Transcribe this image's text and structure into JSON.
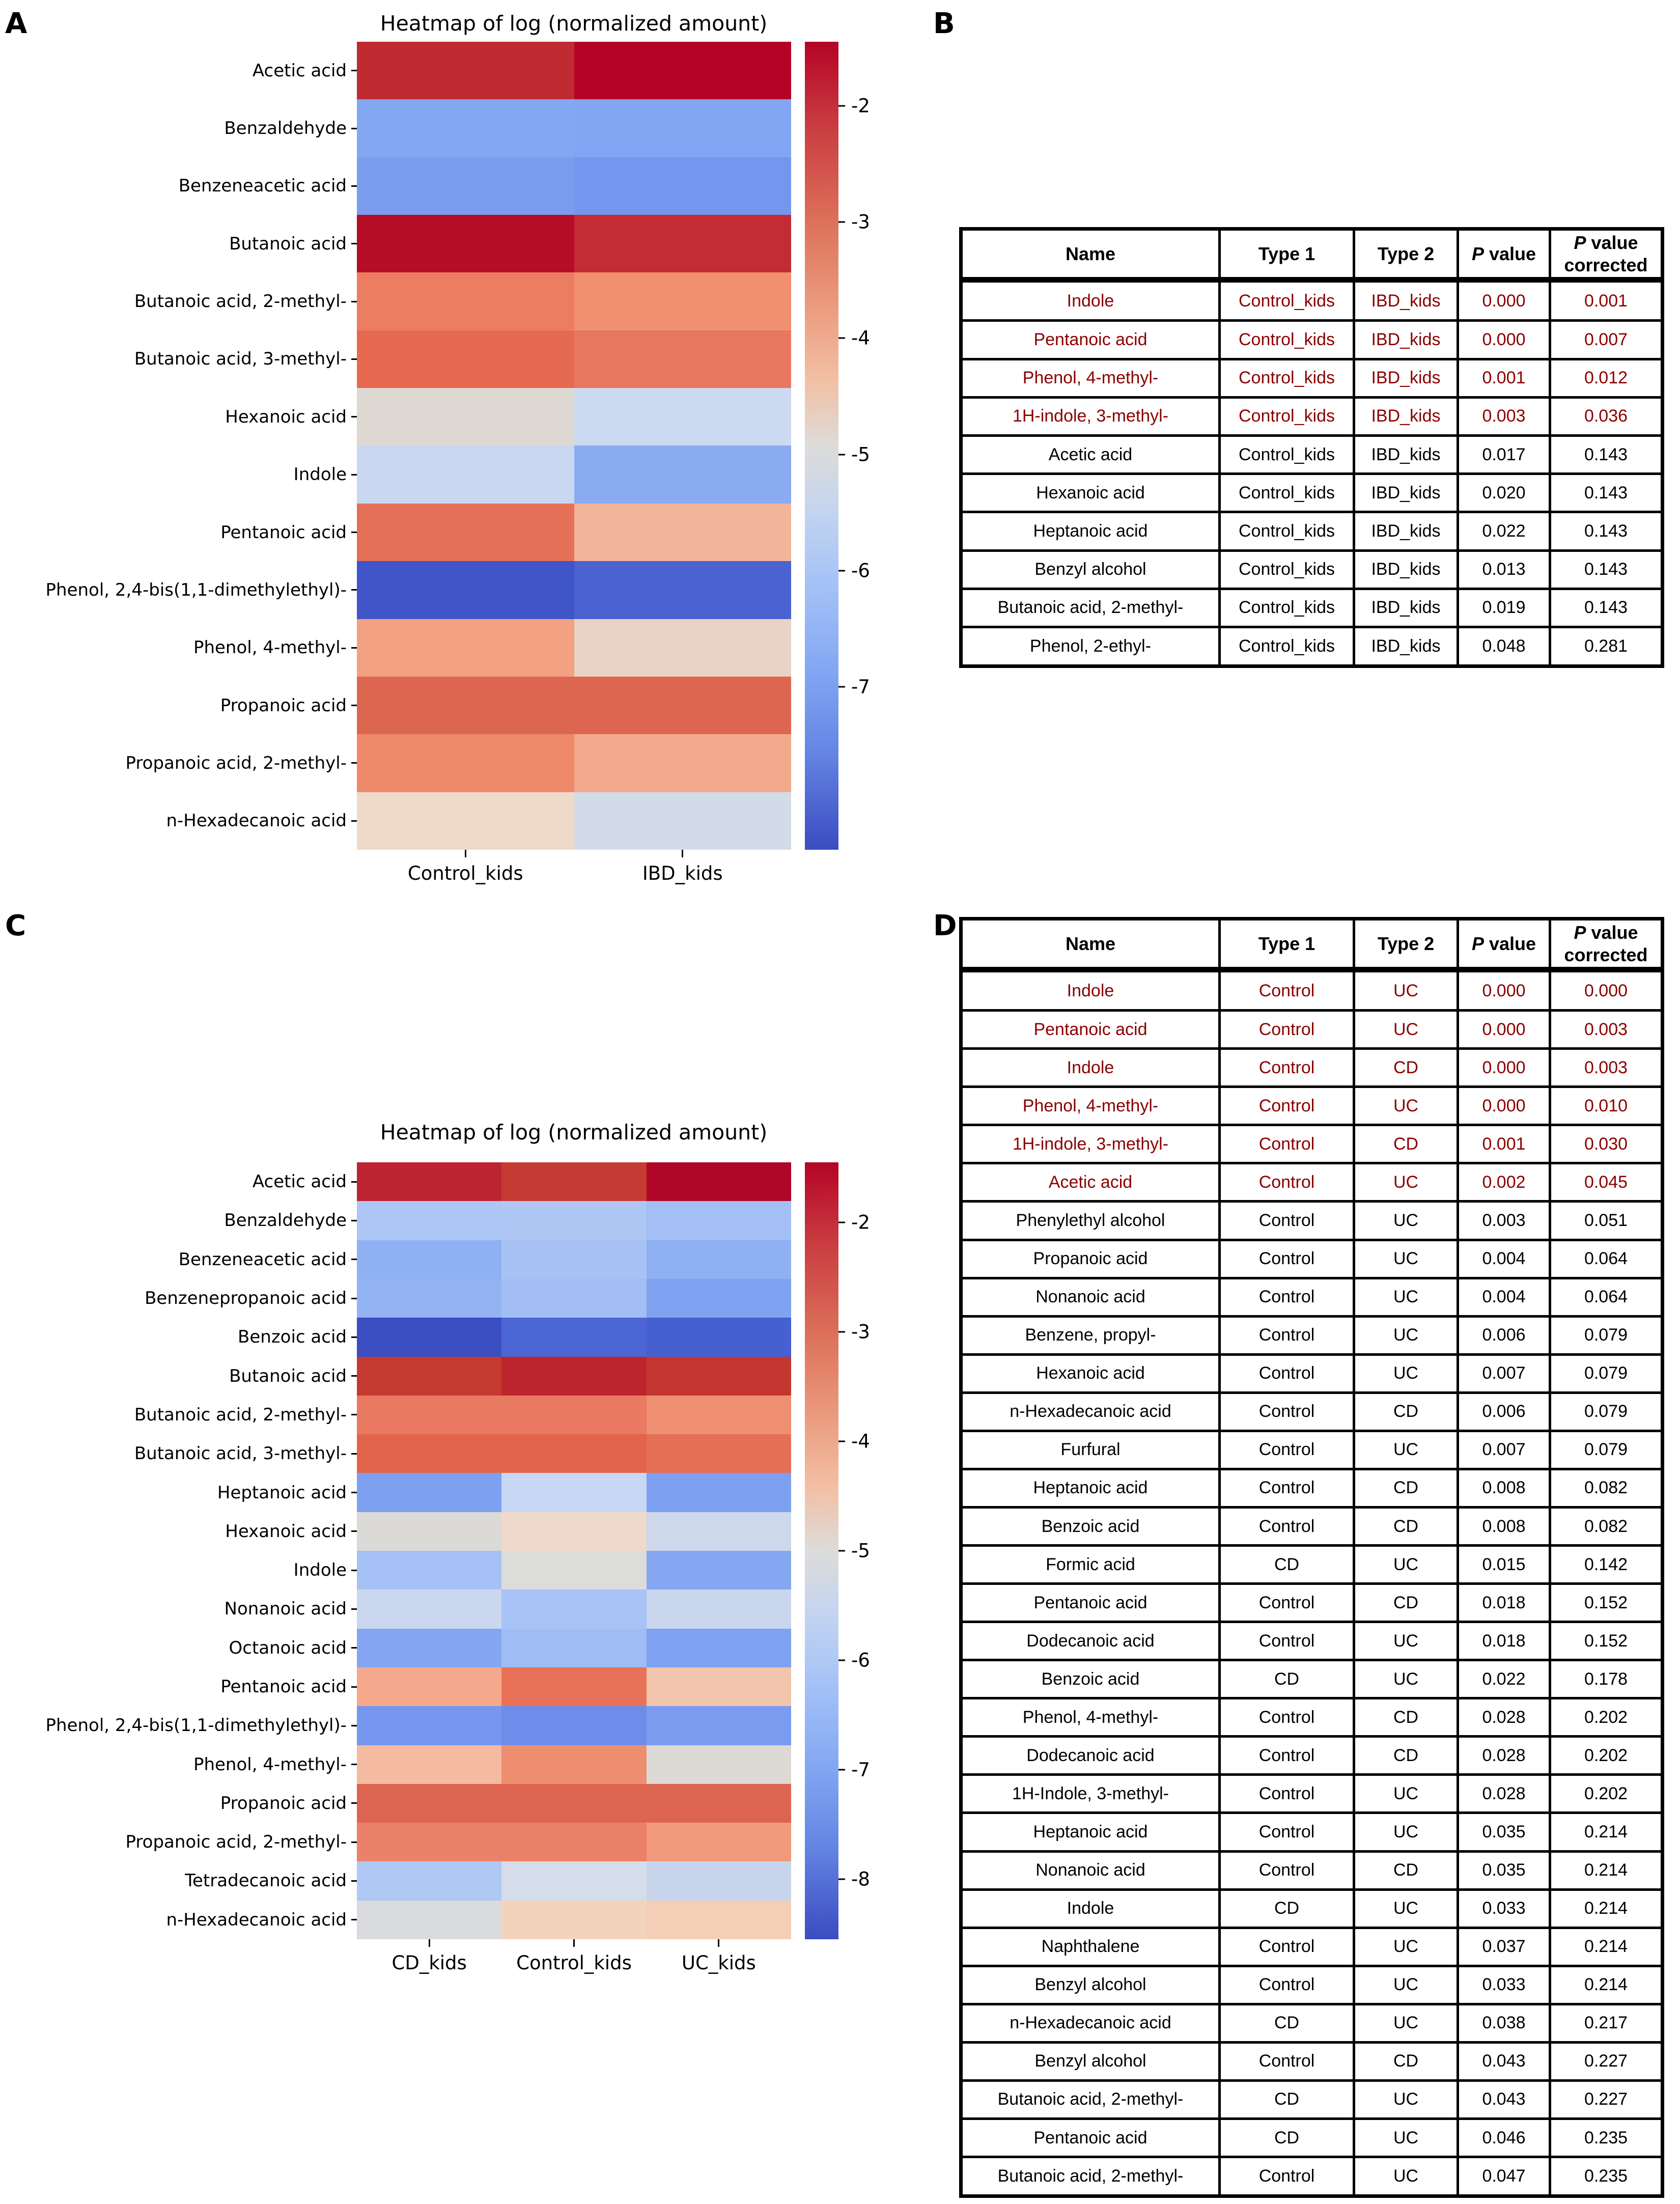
{
  "figure": {
    "background": "#ffffff",
    "significant_text_color": "#8b0000",
    "table_border_color": "#000000"
  },
  "panels": {
    "a": {
      "letter": "A"
    },
    "b": {
      "letter": "B"
    },
    "c": {
      "letter": "C"
    },
    "d": {
      "letter": "D"
    }
  },
  "chart_data": {
    "heatmap_a": {
      "type": "heatmap",
      "title": "Heatmap of log (normalized amount)",
      "rows": [
        "Acetic acid",
        "Benzaldehyde",
        "Benzeneacetic acid",
        "Butanoic acid",
        "Butanoic acid, 2-methyl-",
        "Butanoic acid, 3-methyl-",
        "Hexanoic acid",
        "Indole",
        "Pentanoic acid",
        "Phenol, 2,4-bis(1,1-dimethylethyl)-",
        "Phenol, 4-methyl-",
        "Propanoic acid",
        "Propanoic acid, 2-methyl-",
        "n-Hexadecanoic acid"
      ],
      "columns": [
        "Control_kids",
        "IBD_kids"
      ],
      "values_log_estimated": [
        [
          -2.05,
          -1.55
        ],
        [
          -6.45,
          -6.5
        ],
        [
          -6.7,
          -6.85
        ],
        [
          -1.65,
          -2.05
        ],
        [
          -3.5,
          -3.75
        ],
        [
          -3.3,
          -3.45
        ],
        [
          -4.85,
          -5.6
        ],
        [
          -5.65,
          -6.35
        ],
        [
          -3.35,
          -4.15
        ],
        [
          -8.1,
          -7.9
        ],
        [
          -3.95,
          -4.65
        ],
        [
          -3.2,
          -3.2
        ],
        [
          -3.6,
          -4.0
        ],
        [
          -4.55,
          -5.3
        ]
      ],
      "colors": [
        [
          "#bf2a33",
          "#b40426"
        ],
        [
          "#84a7f1",
          "#82a5f1"
        ],
        [
          "#7b9df0",
          "#7496ee"
        ],
        [
          "#b50c28",
          "#c32b35"
        ],
        [
          "#ec7d60",
          "#f0906f"
        ],
        [
          "#e56a50",
          "#e87760"
        ],
        [
          "#ddd9d2",
          "#cdd9f0"
        ],
        [
          "#c9d8f0",
          "#8aabf2"
        ],
        [
          "#e57058",
          "#f2b49a"
        ],
        [
          "#4055c8",
          "#4a63d0"
        ],
        [
          "#f2a183",
          "#e8d3c6"
        ],
        [
          "#dd6650",
          "#dd6650"
        ],
        [
          "#ee8a69",
          "#f2a98c"
        ],
        [
          "#efd9c8",
          "#d2dce9"
        ]
      ],
      "colorbar": {
        "vmax": -1.45,
        "vmin": -8.4,
        "ticks": [
          -2,
          -3,
          -4,
          -5,
          -6,
          -7
        ]
      }
    },
    "heatmap_c": {
      "type": "heatmap",
      "title": "Heatmap of log (normalized amount)",
      "rows": [
        "Acetic acid",
        "Benzaldehyde",
        "Benzeneacetic acid",
        "Benzenepropanoic acid",
        "Benzoic acid",
        "Butanoic acid",
        "Butanoic acid, 2-methyl-",
        "Butanoic acid, 3-methyl-",
        "Heptanoic acid",
        "Hexanoic acid",
        "Indole",
        "Nonanoic acid",
        "Octanoic acid",
        "Pentanoic acid",
        "Phenol, 2,4-bis(1,1-dimethylethyl)-",
        "Phenol, 4-methyl-",
        "Propanoic acid",
        "Propanoic acid, 2-methyl-",
        "Tetradecanoic acid",
        "n-Hexadecanoic acid"
      ],
      "columns": [
        "CD_kids",
        "Control_kids",
        "UC_kids"
      ],
      "values_log_estimated": [
        [
          -2.1,
          -2.2,
          -1.7
        ],
        [
          -6.05,
          -6.05,
          -6.2
        ],
        [
          -6.5,
          -6.15,
          -6.5
        ],
        [
          -6.45,
          -6.25,
          -6.7
        ],
        [
          -8.35,
          -7.9,
          -8.05
        ],
        [
          -2.25,
          -2.0,
          -2.2
        ],
        [
          -3.5,
          -3.5,
          -3.75
        ],
        [
          -3.3,
          -3.3,
          -3.4
        ],
        [
          -6.75,
          -5.5,
          -6.75
        ],
        [
          -4.9,
          -4.55,
          -5.5
        ],
        [
          -6.25,
          -5.0,
          -6.6
        ],
        [
          -5.5,
          -6.2,
          -5.55
        ],
        [
          -6.55,
          -6.3,
          -6.7
        ],
        [
          -3.9,
          -3.4,
          -4.3
        ],
        [
          -6.95,
          -7.1,
          -6.9
        ],
        [
          -4.2,
          -3.7,
          -4.9
        ],
        [
          -3.2,
          -3.2,
          -3.2
        ],
        [
          -3.6,
          -3.6,
          -3.9
        ],
        [
          -6.0,
          -5.25,
          -5.6
        ],
        [
          -5.0,
          -4.4,
          -4.45
        ]
      ],
      "colors": [
        [
          "#be2330",
          "#c53a33",
          "#ae0727"
        ],
        [
          "#aec6f5",
          "#afc7f5",
          "#a3bff5"
        ],
        [
          "#8fb0f3",
          "#a8c2f5",
          "#8fb0f3"
        ],
        [
          "#93b3f3",
          "#a3bef4",
          "#7fa2f1"
        ],
        [
          "#3b4ec2",
          "#4c66d6",
          "#4760d1"
        ],
        [
          "#c53a30",
          "#be242e",
          "#c43630"
        ],
        [
          "#e97961",
          "#e97961",
          "#ee8f72"
        ],
        [
          "#e2654b",
          "#e2654b",
          "#e56f55"
        ],
        [
          "#7da0f1",
          "#c8d7f3",
          "#7da0f1"
        ],
        [
          "#dbdad6",
          "#efd9ca",
          "#cdd8ea"
        ],
        [
          "#a5c1f5",
          "#dcdcda",
          "#85a7f2"
        ],
        [
          "#cbd7ee",
          "#a8c3f5",
          "#c9d6ee"
        ],
        [
          "#84a6f2",
          "#9fbcf4",
          "#7fa2f1"
        ],
        [
          "#f5a88b",
          "#e87258",
          "#f2c5ac"
        ],
        [
          "#7696ef",
          "#6e8dea",
          "#7a9bf0"
        ],
        [
          "#f4bba0",
          "#ee8e70",
          "#dddad6"
        ],
        [
          "#dc6450",
          "#dc6450",
          "#dc6450"
        ],
        [
          "#eb8168",
          "#eb8168",
          "#f09a7b"
        ],
        [
          "#afc8f4",
          "#d4dde9",
          "#c7d4ec"
        ],
        [
          "#d9dbde",
          "#f4d3bd",
          "#f4cfb6"
        ]
      ],
      "colorbar": {
        "vmax": -1.45,
        "vmin": -8.55,
        "ticks": [
          -2,
          -3,
          -4,
          -5,
          -6,
          -7,
          -8
        ]
      }
    },
    "table_b": {
      "type": "table",
      "headers": [
        "Name",
        "Type 1",
        "Type 2",
        "P value",
        "P value\ncorrected"
      ],
      "rows": [
        {
          "name": "Indole",
          "type1": "Control_kids",
          "type2": "IBD_kids",
          "p": "0.000",
          "p_corrected": "0.001",
          "sig": true
        },
        {
          "name": "Pentanoic acid",
          "type1": "Control_kids",
          "type2": "IBD_kids",
          "p": "0.000",
          "p_corrected": "0.007",
          "sig": true
        },
        {
          "name": "Phenol, 4-methyl-",
          "type1": "Control_kids",
          "type2": "IBD_kids",
          "p": "0.001",
          "p_corrected": "0.012",
          "sig": true
        },
        {
          "name": "1H-indole, 3-methyl-",
          "type1": "Control_kids",
          "type2": "IBD_kids",
          "p": "0.003",
          "p_corrected": "0.036",
          "sig": true
        },
        {
          "name": "Acetic acid",
          "type1": "Control_kids",
          "type2": "IBD_kids",
          "p": "0.017",
          "p_corrected": "0.143",
          "sig": false
        },
        {
          "name": "Hexanoic acid",
          "type1": "Control_kids",
          "type2": "IBD_kids",
          "p": "0.020",
          "p_corrected": "0.143",
          "sig": false
        },
        {
          "name": "Heptanoic acid",
          "type1": "Control_kids",
          "type2": "IBD_kids",
          "p": "0.022",
          "p_corrected": "0.143",
          "sig": false
        },
        {
          "name": "Benzyl alcohol",
          "type1": "Control_kids",
          "type2": "IBD_kids",
          "p": "0.013",
          "p_corrected": "0.143",
          "sig": false
        },
        {
          "name": "Butanoic acid, 2-methyl-",
          "type1": "Control_kids",
          "type2": "IBD_kids",
          "p": "0.019",
          "p_corrected": "0.143",
          "sig": false
        },
        {
          "name": "Phenol, 2-ethyl-",
          "type1": "Control_kids",
          "type2": "IBD_kids",
          "p": "0.048",
          "p_corrected": "0.281",
          "sig": false
        }
      ]
    },
    "table_d": {
      "type": "table",
      "headers": [
        "Name",
        "Type 1",
        "Type 2",
        "P value",
        "P value\ncorrected"
      ],
      "rows": [
        {
          "name": "Indole",
          "type1": "Control",
          "type2": "UC",
          "p": "0.000",
          "p_corrected": "0.000",
          "sig": true
        },
        {
          "name": "Pentanoic acid",
          "type1": "Control",
          "type2": "UC",
          "p": "0.000",
          "p_corrected": "0.003",
          "sig": true
        },
        {
          "name": "Indole",
          "type1": "Control",
          "type2": "CD",
          "p": "0.000",
          "p_corrected": "0.003",
          "sig": true
        },
        {
          "name": "Phenol, 4-methyl-",
          "type1": "Control",
          "type2": "UC",
          "p": "0.000",
          "p_corrected": "0.010",
          "sig": true
        },
        {
          "name": "1H-indole, 3-methyl-",
          "type1": "Control",
          "type2": "CD",
          "p": "0.001",
          "p_corrected": "0.030",
          "sig": true
        },
        {
          "name": "Acetic acid",
          "type1": "Control",
          "type2": "UC",
          "p": "0.002",
          "p_corrected": "0.045",
          "sig": true
        },
        {
          "name": "Phenylethyl alcohol",
          "type1": "Control",
          "type2": "UC",
          "p": "0.003",
          "p_corrected": "0.051",
          "sig": false
        },
        {
          "name": "Propanoic acid",
          "type1": "Control",
          "type2": "UC",
          "p": "0.004",
          "p_corrected": "0.064",
          "sig": false
        },
        {
          "name": "Nonanoic acid",
          "type1": "Control",
          "type2": "UC",
          "p": "0.004",
          "p_corrected": "0.064",
          "sig": false
        },
        {
          "name": "Benzene, propyl-",
          "type1": "Control",
          "type2": "UC",
          "p": "0.006",
          "p_corrected": "0.079",
          "sig": false
        },
        {
          "name": "Hexanoic acid",
          "type1": "Control",
          "type2": "UC",
          "p": "0.007",
          "p_corrected": "0.079",
          "sig": false
        },
        {
          "name": "n-Hexadecanoic acid",
          "type1": "Control",
          "type2": "CD",
          "p": "0.006",
          "p_corrected": "0.079",
          "sig": false
        },
        {
          "name": "Furfural",
          "type1": "Control",
          "type2": "UC",
          "p": "0.007",
          "p_corrected": "0.079",
          "sig": false
        },
        {
          "name": "Heptanoic acid",
          "type1": "Control",
          "type2": "CD",
          "p": "0.008",
          "p_corrected": "0.082",
          "sig": false
        },
        {
          "name": "Benzoic acid",
          "type1": "Control",
          "type2": "CD",
          "p": "0.008",
          "p_corrected": "0.082",
          "sig": false
        },
        {
          "name": "Formic acid",
          "type1": "CD",
          "type2": "UC",
          "p": "0.015",
          "p_corrected": "0.142",
          "sig": false
        },
        {
          "name": "Pentanoic acid",
          "type1": "Control",
          "type2": "CD",
          "p": "0.018",
          "p_corrected": "0.152",
          "sig": false
        },
        {
          "name": "Dodecanoic acid",
          "type1": "Control",
          "type2": "UC",
          "p": "0.018",
          "p_corrected": "0.152",
          "sig": false
        },
        {
          "name": "Benzoic acid",
          "type1": "CD",
          "type2": "UC",
          "p": "0.022",
          "p_corrected": "0.178",
          "sig": false
        },
        {
          "name": "Phenol, 4-methyl-",
          "type1": "Control",
          "type2": "CD",
          "p": "0.028",
          "p_corrected": "0.202",
          "sig": false
        },
        {
          "name": "Dodecanoic acid",
          "type1": "Control",
          "type2": "CD",
          "p": "0.028",
          "p_corrected": "0.202",
          "sig": false
        },
        {
          "name": "1H-Indole, 3-methyl-",
          "type1": "Control",
          "type2": "UC",
          "p": "0.028",
          "p_corrected": "0.202",
          "sig": false
        },
        {
          "name": "Heptanoic acid",
          "type1": "Control",
          "type2": "UC",
          "p": "0.035",
          "p_corrected": "0.214",
          "sig": false
        },
        {
          "name": "Nonanoic acid",
          "type1": "Control",
          "type2": "CD",
          "p": "0.035",
          "p_corrected": "0.214",
          "sig": false
        },
        {
          "name": "Indole",
          "type1": "CD",
          "type2": "UC",
          "p": "0.033",
          "p_corrected": "0.214",
          "sig": false
        },
        {
          "name": "Naphthalene",
          "type1": "Control",
          "type2": "UC",
          "p": "0.037",
          "p_corrected": "0.214",
          "sig": false
        },
        {
          "name": "Benzyl alcohol",
          "type1": "Control",
          "type2": "UC",
          "p": "0.033",
          "p_corrected": "0.214",
          "sig": false
        },
        {
          "name": "n-Hexadecanoic acid",
          "type1": "CD",
          "type2": "UC",
          "p": "0.038",
          "p_corrected": "0.217",
          "sig": false
        },
        {
          "name": "Benzyl alcohol",
          "type1": "Control",
          "type2": "CD",
          "p": "0.043",
          "p_corrected": "0.227",
          "sig": false
        },
        {
          "name": "Butanoic acid, 2-methyl-",
          "type1": "CD",
          "type2": "UC",
          "p": "0.043",
          "p_corrected": "0.227",
          "sig": false
        },
        {
          "name": "Pentanoic acid",
          "type1": "CD",
          "type2": "UC",
          "p": "0.046",
          "p_corrected": "0.235",
          "sig": false
        },
        {
          "name": "Butanoic acid, 2-methyl-",
          "type1": "Control",
          "type2": "UC",
          "p": "0.047",
          "p_corrected": "0.235",
          "sig": false
        }
      ]
    }
  }
}
